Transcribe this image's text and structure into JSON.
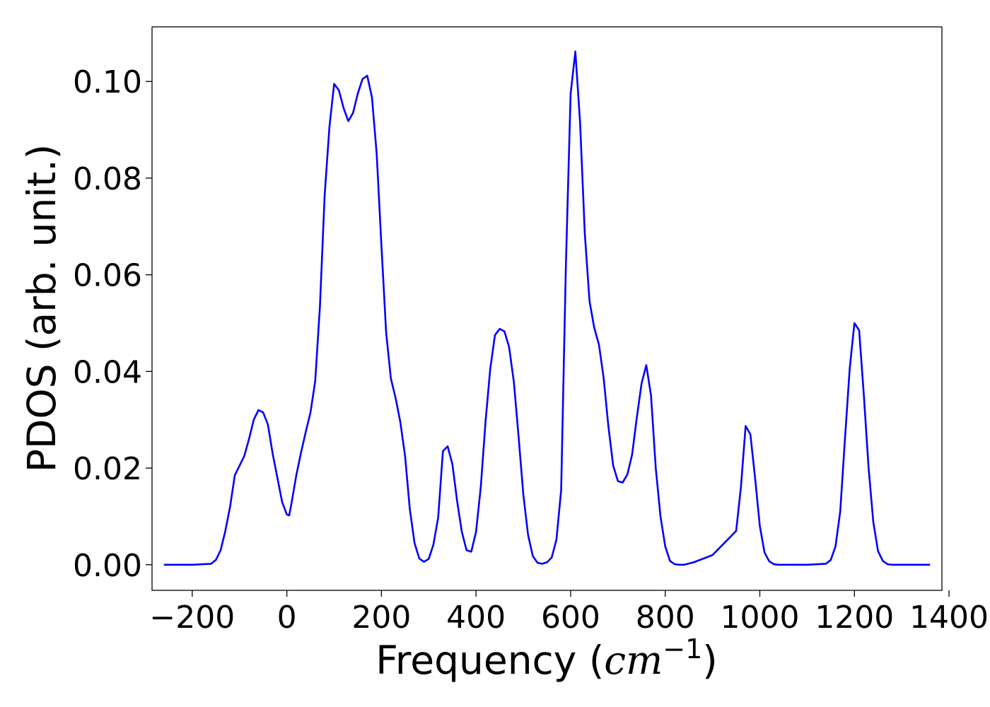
{
  "chart_data": {
    "type": "line",
    "title": "",
    "xlabel_prefix": "Frequency (",
    "xlabel_unit": "cm",
    "xlabel_exponent": "−1",
    "xlabel_suffix": ")",
    "ylabel": "PDOS (arb. unit.)",
    "xlim": [
      -285,
      1385
    ],
    "ylim": [
      -0.0053,
      0.1113
    ],
    "xticks": [
      -200,
      0,
      200,
      400,
      600,
      800,
      1000,
      1200,
      1400
    ],
    "xtick_labels": [
      "−200",
      "0",
      "200",
      "400",
      "600",
      "800",
      "1000",
      "1200",
      "1400"
    ],
    "yticks": [
      0.0,
      0.02,
      0.04,
      0.06,
      0.08,
      0.1
    ],
    "ytick_labels": [
      "0.00",
      "0.02",
      "0.04",
      "0.06",
      "0.08",
      "0.10"
    ],
    "grid": false,
    "line_color": "#0000ff",
    "series": [
      {
        "x": [
          -260,
          -200,
          -160,
          -150,
          -140,
          -130,
          -120,
          -110,
          -100,
          -90,
          -80,
          -70,
          -60,
          -50,
          -40,
          -30,
          -20,
          -10,
          0,
          5,
          10,
          20,
          30,
          40,
          50,
          60,
          70,
          80,
          90,
          100,
          110,
          120,
          130,
          140,
          150,
          160,
          170,
          180,
          190,
          200,
          210,
          220,
          230,
          240,
          250,
          260,
          270,
          280,
          290,
          300,
          310,
          320,
          330,
          340,
          350,
          360,
          370,
          380,
          390,
          400,
          410,
          420,
          430,
          440,
          450,
          460,
          470,
          480,
          490,
          500,
          510,
          520,
          530,
          540,
          550,
          560,
          570,
          580,
          590,
          600,
          610,
          620,
          630,
          640,
          650,
          660,
          670,
          680,
          690,
          700,
          710,
          720,
          730,
          740,
          750,
          760,
          770,
          780,
          790,
          800,
          810,
          820,
          830,
          840,
          860,
          900,
          950,
          960,
          970,
          980,
          990,
          1000,
          1010,
          1020,
          1030,
          1040,
          1050,
          1060,
          1070,
          1100,
          1140,
          1150,
          1160,
          1170,
          1180,
          1190,
          1200,
          1210,
          1220,
          1230,
          1240,
          1250,
          1260,
          1270,
          1280,
          1300,
          1360
        ],
        "y": [
          0.0,
          0.0,
          0.0002,
          0.001,
          0.003,
          0.007,
          0.012,
          0.0185,
          0.0205,
          0.0225,
          0.026,
          0.03,
          0.032,
          0.0315,
          0.029,
          0.023,
          0.018,
          0.013,
          0.0104,
          0.0102,
          0.0128,
          0.0185,
          0.0232,
          0.0275,
          0.0315,
          0.038,
          0.0535,
          0.0765,
          0.0905,
          0.0995,
          0.0982,
          0.0945,
          0.0918,
          0.0935,
          0.0975,
          0.1005,
          0.1012,
          0.0967,
          0.085,
          0.066,
          0.048,
          0.0385,
          0.0345,
          0.0295,
          0.0225,
          0.0115,
          0.0045,
          0.0013,
          0.0006,
          0.0012,
          0.0042,
          0.0098,
          0.0235,
          0.0245,
          0.0208,
          0.0132,
          0.0068,
          0.003,
          0.0027,
          0.0068,
          0.016,
          0.0295,
          0.0405,
          0.0475,
          0.0488,
          0.0483,
          0.045,
          0.0378,
          0.0265,
          0.0145,
          0.0062,
          0.0018,
          0.0004,
          0.0002,
          0.0005,
          0.0015,
          0.0052,
          0.0155,
          0.062,
          0.0975,
          0.1062,
          0.0915,
          0.0685,
          0.0545,
          0.049,
          0.0455,
          0.0385,
          0.0285,
          0.0205,
          0.0173,
          0.017,
          0.0187,
          0.0228,
          0.0305,
          0.0375,
          0.0413,
          0.035,
          0.02,
          0.01,
          0.0038,
          0.0008,
          0.0001,
          0.0,
          0.0,
          0.0005,
          0.002,
          0.007,
          0.016,
          0.0287,
          0.027,
          0.018,
          0.008,
          0.0025,
          0.0007,
          0.0001,
          0.0,
          0.0,
          0.0,
          0.0,
          0.0,
          0.0002,
          0.001,
          0.0038,
          0.011,
          0.026,
          0.0405,
          0.05,
          0.0485,
          0.035,
          0.02,
          0.0088,
          0.0028,
          0.0008,
          0.0001,
          0.0,
          0.0,
          0.0
        ]
      }
    ]
  }
}
